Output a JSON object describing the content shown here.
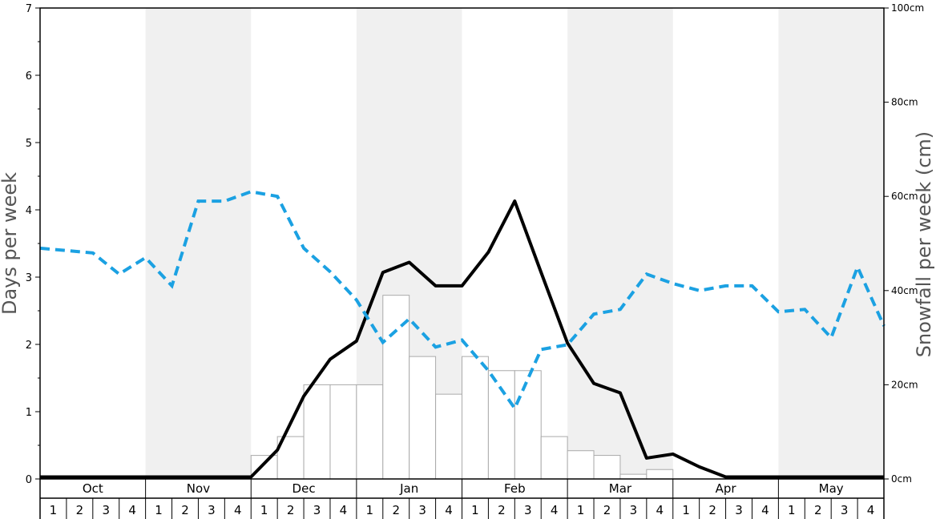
{
  "chart_data": {
    "type": "bar",
    "months": [
      "Oct",
      "Nov",
      "Dec",
      "Jan",
      "Feb",
      "Mar",
      "Apr",
      "May"
    ],
    "week_labels": [
      "1",
      "2",
      "3",
      "4"
    ],
    "y_left": {
      "label": "Days per week",
      "ylim": [
        0,
        7
      ],
      "ticks": [
        "0",
        "1",
        "2",
        "3",
        "4",
        "5",
        "6",
        "7"
      ]
    },
    "y_right": {
      "label": "Snowfall per week (cm)",
      "ylim": [
        0,
        100
      ],
      "ticks": [
        "0cm",
        "20cm",
        "40cm",
        "60cm",
        "80cm",
        "100cm"
      ]
    },
    "shaded_months": [
      "Nov",
      "Jan",
      "Mar",
      "May"
    ],
    "colors": {
      "bars_stroke": "#aaaaaa",
      "bars_fill": "#ffffff",
      "black_line": "#000000",
      "blue_dashed": "#1ba1e2",
      "shade": "#f0f0f0"
    },
    "series": [
      {
        "type": "bar",
        "axis": "right",
        "values": [
          0,
          0,
          0,
          0,
          0,
          0,
          0,
          0,
          5,
          9,
          20,
          20,
          20,
          39,
          26,
          18,
          26,
          23,
          23,
          9,
          6,
          5,
          1,
          2,
          0,
          0,
          0,
          0,
          0,
          0,
          0,
          0
        ]
      },
      {
        "type": "line",
        "style": "solid",
        "axis": "left",
        "values": [
          0.03,
          0.03,
          0.03,
          0.03,
          0.03,
          0.03,
          0.03,
          0.03,
          0.03,
          0.43,
          1.23,
          1.78,
          2.05,
          3.07,
          3.22,
          2.87,
          2.87,
          3.37,
          4.13,
          3.07,
          2.02,
          1.42,
          1.28,
          0.31,
          0.37,
          0.18,
          0.03,
          0.03,
          0.03,
          0.03,
          0.03,
          0.03,
          0.03
        ]
      },
      {
        "type": "line",
        "style": "dashed",
        "axis": "right",
        "values": [
          49,
          48.5,
          48,
          43.5,
          47,
          41,
          59,
          59,
          61,
          60,
          49,
          44,
          38,
          29,
          34,
          28,
          29.5,
          23,
          15,
          27.5,
          28.5,
          35,
          36,
          43.5,
          41.5,
          40,
          41,
          41,
          35.5,
          36,
          30,
          45,
          32.5
        ]
      }
    ]
  }
}
